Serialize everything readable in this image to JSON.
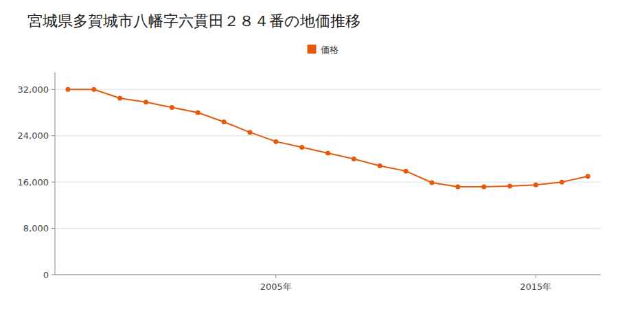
{
  "chart_data": {
    "type": "line",
    "title": "宮城県多賀城市八幡字六貫田２８４番の地価推移",
    "x": [
      1997,
      1998,
      1999,
      2000,
      2001,
      2002,
      2003,
      2004,
      2005,
      2006,
      2007,
      2008,
      2009,
      2010,
      2011,
      2012,
      2013,
      2014,
      2015,
      2016,
      2017
    ],
    "series": [
      {
        "name": "価格",
        "color": "#e8580a",
        "marker": "circle",
        "values": [
          32000,
          32000,
          30500,
          29800,
          28900,
          28000,
          26400,
          24600,
          23000,
          22000,
          21000,
          20000,
          18800,
          17900,
          15900,
          15200,
          15200,
          15300,
          15500,
          16000,
          17000
        ]
      }
    ],
    "xlim": [
      1996.5,
      2017.5
    ],
    "xticks": [
      {
        "value": 2005,
        "label": "2005年"
      },
      {
        "value": 2015,
        "label": "2015年"
      }
    ],
    "ylim": [
      0,
      35000
    ],
    "yticks": [
      0,
      {
        "value": 8000,
        "label": "8,000"
      },
      {
        "value": 16000,
        "label": "16,000"
      },
      {
        "value": 24000,
        "label": "24,000"
      },
      {
        "value": 32000,
        "label": "32,000"
      }
    ],
    "grid": true,
    "legend": "top"
  }
}
